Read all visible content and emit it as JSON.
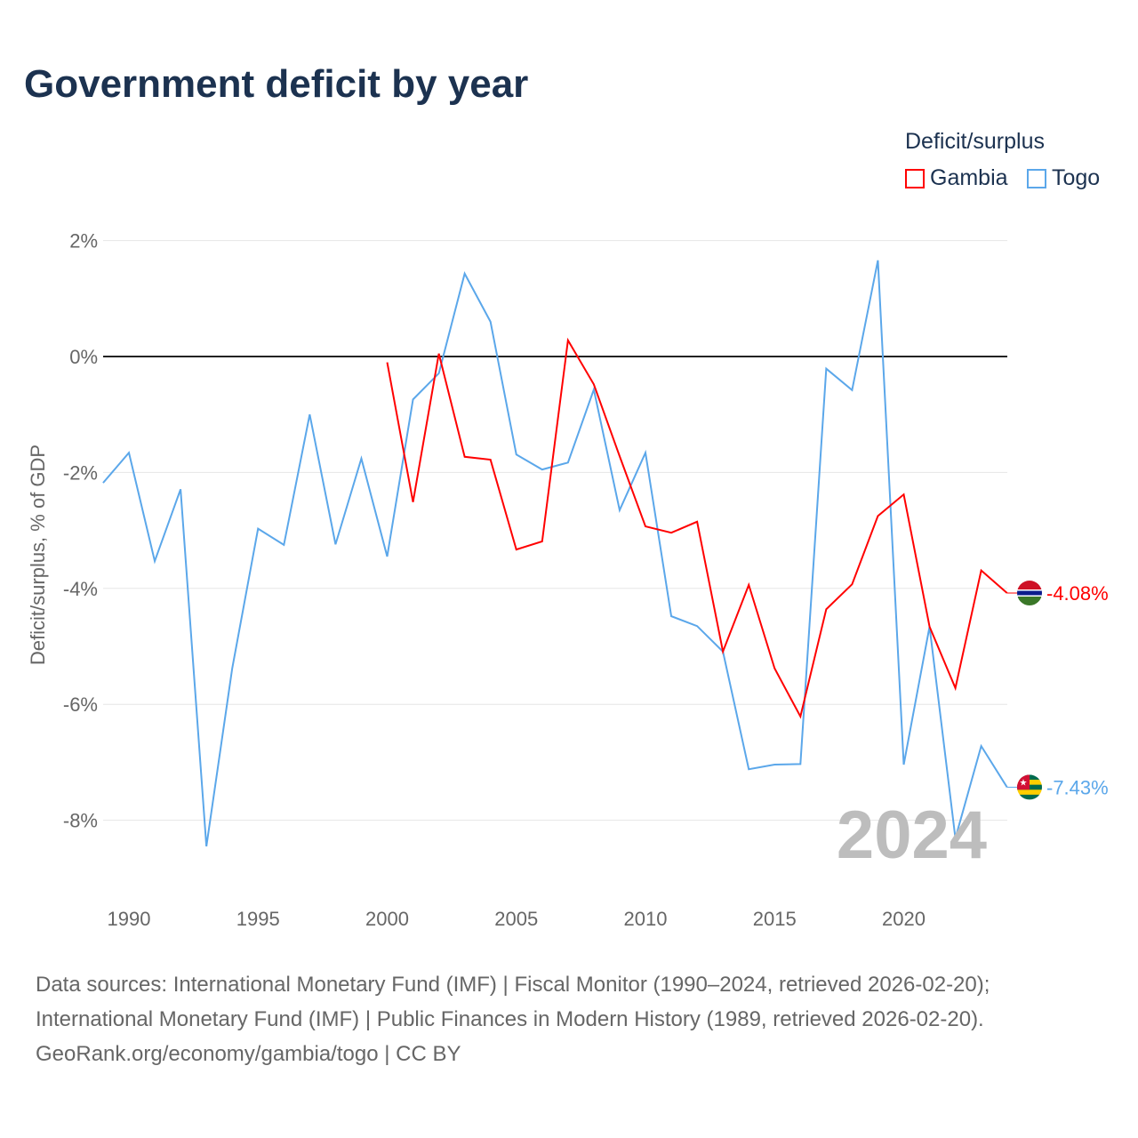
{
  "title": "Government deficit by year",
  "legend": {
    "title": "Deficit/surplus",
    "items": [
      "Gambia",
      "Togo"
    ]
  },
  "year_label": "2024",
  "sources": [
    "Data sources: International Monetary Fund (IMF) | Fiscal Monitor (1990–2024, retrieved 2026-02-20);",
    "International Monetary Fund (IMF) | Public Finances in Modern History (1989, retrieved 2026-02-20).",
    "GeoRank.org/economy/gambia/togo | CC BY"
  ],
  "chart_data": {
    "type": "line",
    "title": "Government deficit by year",
    "xlabel": "",
    "ylabel": "Deficit/surplus, % of GDP",
    "xlim": [
      1989,
      2024
    ],
    "ylim": [
      -9.3,
      2.5
    ],
    "xticks": [
      1990,
      1995,
      2000,
      2005,
      2010,
      2015,
      2020
    ],
    "yticks": [
      2,
      0,
      -2,
      -4,
      -6,
      -8
    ],
    "ytick_labels": [
      "2%",
      "0%",
      "-2%",
      "-4%",
      "-6%",
      "-8%"
    ],
    "grid": true,
    "legend_position": "top-right",
    "series": [
      {
        "name": "Gambia",
        "color": "#ff0000",
        "end_label": "-4.08%",
        "x": [
          2000,
          2001,
          2002,
          2003,
          2004,
          2005,
          2006,
          2007,
          2008,
          2009,
          2010,
          2011,
          2012,
          2013,
          2014,
          2015,
          2016,
          2017,
          2018,
          2019,
          2020,
          2021,
          2022,
          2023,
          2024
        ],
        "values": [
          -0.1,
          -2.51,
          0.05,
          -1.73,
          -1.78,
          -3.33,
          -3.19,
          0.28,
          -0.48,
          -1.72,
          -2.93,
          -3.04,
          -2.85,
          -5.09,
          -3.94,
          -5.38,
          -6.21,
          -4.36,
          -3.93,
          -2.75,
          -2.38,
          -4.66,
          -5.72,
          -3.69,
          -4.08
        ]
      },
      {
        "name": "Togo",
        "color": "#5ba7ea",
        "end_label": "-7.43%",
        "x": [
          1989,
          1990,
          1991,
          1992,
          1993,
          1994,
          1995,
          1996,
          1997,
          1998,
          1999,
          2000,
          2001,
          2002,
          2003,
          2004,
          2005,
          2006,
          2007,
          2008,
          2009,
          2010,
          2011,
          2012,
          2013,
          2014,
          2015,
          2016,
          2017,
          2018,
          2019,
          2020,
          2021,
          2022,
          2023,
          2024
        ],
        "values": [
          -2.18,
          -1.66,
          -3.53,
          -2.29,
          -8.45,
          -5.38,
          -2.97,
          -3.25,
          -1.0,
          -3.24,
          -1.76,
          -3.45,
          -0.74,
          -0.29,
          1.43,
          0.6,
          -1.69,
          -1.95,
          -1.83,
          -0.57,
          -2.65,
          -1.66,
          -4.48,
          -4.65,
          -5.09,
          -7.12,
          -7.04,
          -7.03,
          -0.21,
          -0.58,
          1.66,
          -7.04,
          -4.66,
          -8.31,
          -6.72,
          -7.43
        ]
      }
    ]
  }
}
